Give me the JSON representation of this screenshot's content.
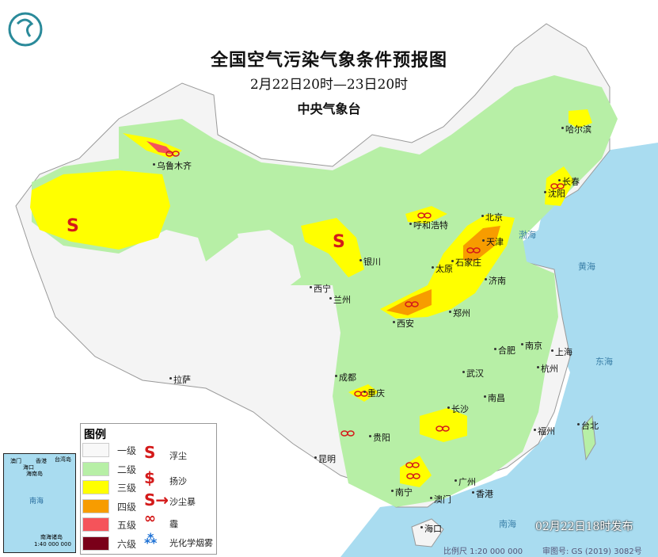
{
  "header": {
    "title": "全国空气污染气象条件预报图",
    "period": "2月22日20时—23日20时",
    "issuer": "中央气象台"
  },
  "logo": "cma-logo",
  "legend": {
    "title": "图例",
    "levels": [
      {
        "label": "一级",
        "color": "#f8f8f8"
      },
      {
        "label": "二级",
        "color": "#b7efa6"
      },
      {
        "label": "三级",
        "color": "#ffff00"
      },
      {
        "label": "四级",
        "color": "#f79c00"
      },
      {
        "label": "五级",
        "color": "#f5535a"
      },
      {
        "label": "六级",
        "color": "#7a0019"
      }
    ],
    "symbols": [
      {
        "label": "浮尘",
        "icon": "floating-dust-icon"
      },
      {
        "label": "扬沙",
        "icon": "blowing-sand-icon"
      },
      {
        "label": "沙尘暴",
        "icon": "sandstorm-icon"
      },
      {
        "label": "霾",
        "icon": "haze-icon"
      },
      {
        "label": "光化学烟雾",
        "icon": "photochemical-smog-icon"
      }
    ]
  },
  "cities": [
    "乌鲁木齐",
    "哈尔滨",
    "长春",
    "沈阳",
    "北京",
    "天津",
    "呼和浩特",
    "石家庄",
    "太原",
    "济南",
    "银川",
    "西宁",
    "兰州",
    "西安",
    "郑州",
    "合肥",
    "南京",
    "上海",
    "杭州",
    "武汉",
    "南昌",
    "长沙",
    "福州",
    "台北",
    "成都",
    "重庆",
    "贵阳",
    "昆明",
    "拉萨",
    "广州",
    "香港",
    "澳门",
    "南宁",
    "海口"
  ],
  "inset": {
    "labels": [
      "澳门",
      "香港",
      "台湾岛",
      "海口",
      "海南岛",
      "南海",
      "南海诸岛"
    ],
    "scale": "1:40 000 000"
  },
  "sea_labels": [
    "渤海",
    "黄海",
    "东海",
    "南海"
  ],
  "footer": {
    "issue_time": "02月22日18时发布",
    "scale": "比例尺 1:20 000 000",
    "map_number": "审图号: GS (2019) 3082号"
  },
  "colors": {
    "sea": "#a9dcf0",
    "level2": "#b7efa6",
    "level3": "#ffff00",
    "level4": "#f79c00"
  }
}
